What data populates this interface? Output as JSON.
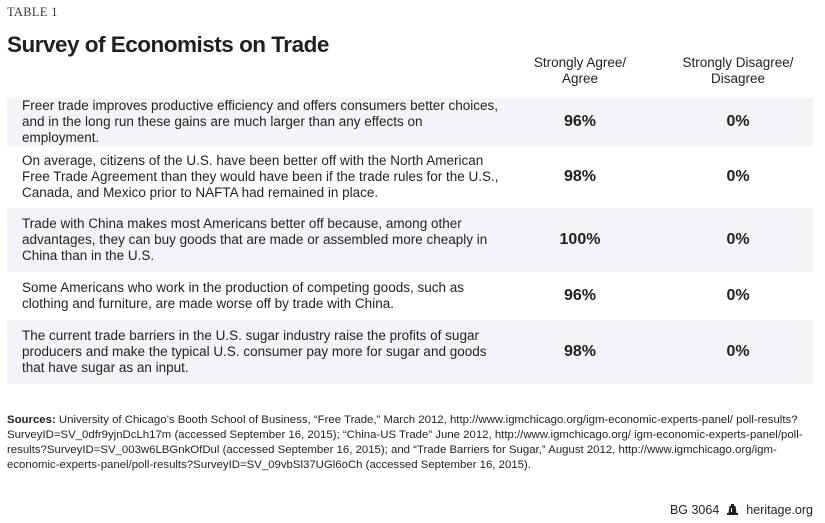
{
  "table_label": "TABLE 1",
  "title": "Survey of Economists on Trade",
  "columns": {
    "agree": "Strongly Agree/ Agree",
    "agree_line1": "Strongly Agree/",
    "agree_line2": "Agree",
    "disagree": "Strongly Disagree/ Disagree",
    "disagree_line1": "Strongly Disagree/",
    "disagree_line2": "Disagree"
  },
  "rows": [
    {
      "statement": "Freer trade improves productive efficiency and offers consumers better choices, and in the long run these gains are much larger than any effects on employment.",
      "agree": "96%",
      "disagree": "0%"
    },
    {
      "statement": "On average, citizens of the U.S. have been better off with the North American Free Trade Agreement than they would have been if the trade rules for the U.S., Canada, and Mexico prior to NAFTA had remained in place.",
      "agree": "98%",
      "disagree": "0%"
    },
    {
      "statement": "Trade with China makes most Americans better off because, among other advantages, they can buy goods that are made or assembled more cheaply in China than in the U.S.",
      "agree": "100%",
      "disagree": "0%"
    },
    {
      "statement": "Some Americans who work in the production of competing goods, such as clothing and furniture, are made worse off by trade with China.",
      "agree": "96%",
      "disagree": "0%"
    },
    {
      "statement": "The current trade barriers in the U.S. sugar industry raise the profits of sugar producers and make the typical U.S. consumer pay more for sugar and goods that have sugar as an input.",
      "agree": "98%",
      "disagree": "0%"
    }
  ],
  "sources": {
    "label": "Sources:",
    "text": " University of Chicago’s Booth School of Business, “Free Trade,” March 2012, http://www.igmchicago.org/igm-economic-experts-panel/ poll-results?SurveyID=SV_0dfr9yjnDcLh17m (accessed September 16, 2015); “China-US Trade” June 2012, http://www.igmchicago.org/ igm-economic-experts-panel/poll-results?SurveyID=SV_003w6LBGnkOfDul (accessed September 16, 2015); and “Trade Barriers for Sugar,” August 2012, http://www.igmchicago.org/igm-economic-experts-panel/poll-results?SurveyID=SV_09vbSl37UGl6oCh (accessed September 16, 2015)."
  },
  "footer": {
    "code": "BG 3064",
    "logo_icon": "liberty-bell-icon",
    "site": "heritage.org"
  },
  "colors": {
    "row_shade": "#f3f4f8",
    "text": "#231f20"
  }
}
